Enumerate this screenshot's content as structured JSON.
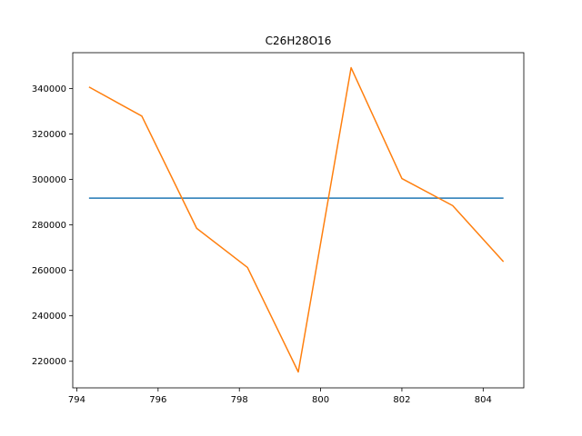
{
  "chart_data": {
    "type": "line",
    "title": "C26H28O16",
    "xlabel": "",
    "ylabel": "",
    "xlim": [
      793.9,
      805.0
    ],
    "ylim": [
      208300,
      355800
    ],
    "x_ticks": [
      794,
      796,
      798,
      800,
      802,
      804
    ],
    "y_ticks": [
      220000,
      240000,
      260000,
      280000,
      300000,
      320000,
      340000
    ],
    "grid": false,
    "legend": "none",
    "series": [
      {
        "color": "#1f77b4",
        "x": [
          794.3,
          804.5
        ],
        "y": [
          291800,
          291800
        ]
      },
      {
        "color": "#ff7f0e",
        "x": [
          794.3,
          795.6,
          796.95,
          798.2,
          799.45,
          800.75,
          802.0,
          803.25,
          804.5
        ],
        "y": [
          340700,
          327900,
          278500,
          261300,
          215300,
          349200,
          300400,
          288500,
          263800
        ]
      }
    ]
  }
}
